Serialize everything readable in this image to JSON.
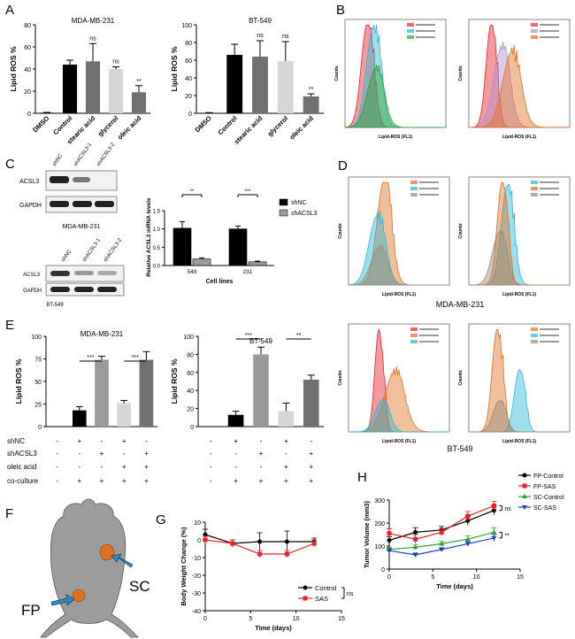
{
  "panel_labels": {
    "A": "A",
    "B": "B",
    "C": "C",
    "D": "D",
    "E": "E",
    "F": "F",
    "G": "G",
    "H": "H"
  },
  "cell_lines": {
    "mda": "MDA-MB-231",
    "bt": "BT-549"
  },
  "colors": {
    "black": "#000000",
    "dark_gray": "#707070",
    "mid_gray": "#9a9a9a",
    "light_gray": "#d6d6d6",
    "red": "#e8212a",
    "green": "#2ca02c",
    "blue": "#1f3fbf",
    "orange": "#e07020",
    "cyan": "#28b8d8",
    "mouse": "#9c9c9c"
  },
  "panelA": {
    "ylabel": "Lipid ROS %",
    "sig_ns": "ns",
    "sig_double": "**"
  },
  "panelB": {
    "xlabel": "Lipid-ROS (FL1)",
    "ylabel": "Counts"
  },
  "panelC": {
    "blot_top_lanes": [
      "shNC",
      "shACSL3-1",
      "shACSL3-2"
    ],
    "blot_bottom_lanes": [
      "shNC",
      "shACSL3-1",
      "shACSL3-2"
    ],
    "band_acsl3": "ACSL3",
    "band_gapdh": "GAPDH",
    "blot_caption_top": "MDA-MB-231",
    "blot_caption_bottom": "BT-549",
    "sig_double": "**",
    "sig_triple": "***"
  },
  "panelD": {
    "xlabel": "Lipid-ROS (FL1)",
    "ylabel": "Counts",
    "caption_mda": "MDA-MB-231",
    "caption_bt": "BT-549"
  },
  "panelE": {
    "ylabel": "Lipid ROS %",
    "row_labels": [
      "shNC",
      "shACSL3",
      "oleic acid",
      "co-culture"
    ],
    "rows": [
      [
        "-",
        "+",
        "-",
        "+",
        "-"
      ],
      [
        "-",
        "-",
        "+",
        "-",
        "+"
      ],
      [
        "-",
        "-",
        "-",
        "+",
        "+"
      ],
      [
        "-",
        "+",
        "+",
        "+",
        "+"
      ]
    ],
    "sig_triple": "***",
    "sig_double": "**"
  },
  "panelF": {
    "label_sc": "SC",
    "label_fp": "FP"
  },
  "chart_data": [
    {
      "type": "bar",
      "panel": "A-left",
      "title": "MDA-MB-231",
      "categories": [
        "DMSO",
        "Control",
        "stearic acid",
        "glycerol",
        "oleic acid"
      ],
      "values": [
        0.5,
        44,
        47,
        40,
        19
      ],
      "errors": [
        0.3,
        4,
        16,
        2,
        6
      ],
      "ylabel": "Lipid ROS %",
      "ylim": [
        0,
        80
      ],
      "yticks": [
        0,
        20,
        40,
        60,
        80
      ]
    },
    {
      "type": "bar",
      "panel": "A-right",
      "title": "BT-549",
      "categories": [
        "DMSO",
        "Control",
        "stearic acid",
        "glycerol",
        "oleic acid"
      ],
      "values": [
        0.5,
        66,
        64,
        59,
        19
      ],
      "errors": [
        0.3,
        12,
        18,
        22,
        3
      ],
      "ylabel": "Lipid ROS %",
      "ylim": [
        0,
        100
      ],
      "yticks": [
        0,
        20,
        40,
        60,
        80,
        100
      ]
    },
    {
      "type": "bar",
      "panel": "C",
      "categories": [
        "549",
        "231"
      ],
      "xlabel": "Cell lines",
      "ylabel": "Relative ACSL3 mRNA levels",
      "series": [
        {
          "name": "shNC",
          "values": [
            1.02,
            1.0
          ],
          "errors": [
            0.18,
            0.08
          ]
        },
        {
          "name": "shACSL3",
          "values": [
            0.18,
            0.1
          ],
          "errors": [
            0.03,
            0.02
          ]
        }
      ],
      "ylim": [
        0,
        1.5
      ],
      "yticks": [
        0,
        0.5,
        1.0,
        1.5
      ]
    },
    {
      "type": "bar",
      "panel": "E-left",
      "title": "MDA-MB-231",
      "values": [
        0,
        18,
        74,
        26,
        74
      ],
      "errors": [
        0,
        4,
        4,
        3,
        9
      ],
      "ylabel": "Lipid ROS %",
      "ylim": [
        0,
        100
      ],
      "yticks": [
        0,
        25,
        50,
        75,
        100
      ]
    },
    {
      "type": "bar",
      "panel": "E-right",
      "title": "BT-549",
      "values": [
        0,
        13,
        80,
        17,
        52
      ],
      "errors": [
        0,
        4,
        8,
        9,
        5
      ],
      "ylabel": "Lipid ROS %",
      "ylim": [
        0,
        100
      ],
      "yticks": [
        0,
        20,
        40,
        60,
        80,
        100
      ]
    },
    {
      "type": "line",
      "panel": "G",
      "xlabel": "Time (days)",
      "ylabel": "Body Weight Change (%)",
      "xlim": [
        0,
        15
      ],
      "xticks": [
        0,
        5,
        10,
        15
      ],
      "ylim": [
        -40,
        10
      ],
      "yticks": [
        -40,
        -30,
        -20,
        -10,
        0,
        10
      ],
      "series": [
        {
          "name": "Control",
          "x": [
            0,
            3,
            6,
            9,
            12
          ],
          "y": [
            3,
            -2,
            -1,
            -1,
            -1
          ],
          "err": [
            3,
            2,
            5,
            6,
            2
          ]
        },
        {
          "name": "SAS",
          "x": [
            0,
            3,
            6,
            9,
            12
          ],
          "y": [
            0,
            -2,
            -8,
            -8,
            -2
          ],
          "err": [
            2,
            2,
            2,
            2,
            2
          ]
        }
      ],
      "sig": "ns"
    },
    {
      "type": "line",
      "panel": "H",
      "xlabel": "Time (days)",
      "ylabel": "Tumor Volume (mm3)",
      "xlim": [
        0,
        15
      ],
      "xticks": [
        0,
        5,
        10,
        15
      ],
      "ylim": [
        0,
        300
      ],
      "yticks": [
        0,
        100,
        200,
        300
      ],
      "series": [
        {
          "name": "FP-Control",
          "x": [
            0,
            3,
            6,
            9,
            12
          ],
          "y": [
            125,
            160,
            170,
            210,
            255
          ],
          "err": [
            15,
            20,
            15,
            20,
            20
          ]
        },
        {
          "name": "FP-SAS",
          "x": [
            0,
            3,
            6,
            9,
            12
          ],
          "y": [
            155,
            130,
            160,
            230,
            275
          ],
          "err": [
            20,
            20,
            15,
            20,
            20
          ]
        },
        {
          "name": "SC-Control",
          "x": [
            0,
            3,
            6,
            9,
            12
          ],
          "y": [
            85,
            95,
            110,
            130,
            160
          ],
          "err": [
            10,
            10,
            10,
            15,
            20
          ]
        },
        {
          "name": "SC-SAS",
          "x": [
            0,
            3,
            6,
            9,
            12
          ],
          "y": [
            80,
            62,
            85,
            110,
            135
          ],
          "err": [
            10,
            8,
            8,
            10,
            15
          ]
        }
      ],
      "sig_top": "ns",
      "sig_bottom": "**"
    }
  ]
}
